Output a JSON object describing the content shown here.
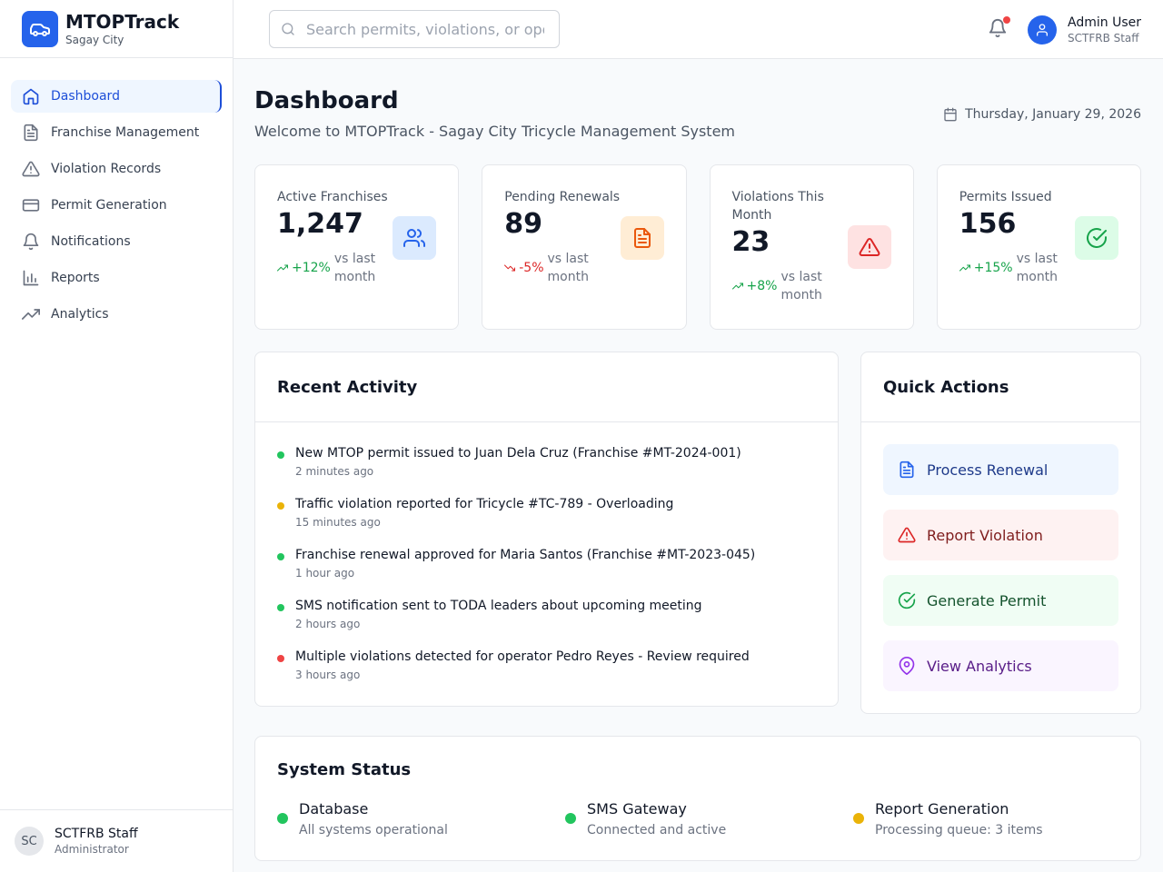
{
  "brand": {
    "title": "MTOPTrack",
    "subtitle": "Sagay City",
    "accent": "#2563eb"
  },
  "sidebar": {
    "items": [
      {
        "label": "Dashboard",
        "icon": "home-icon",
        "active": true
      },
      {
        "label": "Franchise Management",
        "icon": "file-icon"
      },
      {
        "label": "Violation Records",
        "icon": "alert-triangle-icon"
      },
      {
        "label": "Permit Generation",
        "icon": "credit-card-icon"
      },
      {
        "label": "Notifications",
        "icon": "bell-icon"
      },
      {
        "label": "Reports",
        "icon": "bar-chart-icon"
      },
      {
        "label": "Analytics",
        "icon": "trending-up-icon"
      }
    ],
    "footer": {
      "initials": "SC",
      "name": "SCTFRB Staff",
      "role": "Administrator"
    }
  },
  "header": {
    "search_placeholder": "Search permits, violations, or operators...",
    "user": {
      "name": "Admin User",
      "role": "SCTFRB Staff"
    }
  },
  "page": {
    "title": "Dashboard",
    "subtitle": "Welcome to MTOPTrack - Sagay City Tricycle Management System",
    "date": "Thursday, January 29, 2026"
  },
  "stats": [
    {
      "label": "Active Franchises",
      "value": "1,247",
      "change": "+12%",
      "trend": "up",
      "note": "vs last month",
      "icon": "users-icon"
    },
    {
      "label": "Pending Renewals",
      "value": "89",
      "change": "-5%",
      "trend": "down",
      "note": "vs last month",
      "icon": "file-text-icon"
    },
    {
      "label": "Violations This Month",
      "value": "23",
      "change": "+8%",
      "trend": "up",
      "note": "vs last month",
      "icon": "alert-triangle-icon"
    },
    {
      "label": "Permits Issued",
      "value": "156",
      "change": "+15%",
      "trend": "up",
      "note": "vs last month",
      "icon": "check-circle-icon"
    }
  ],
  "activity": {
    "title": "Recent Activity",
    "items": [
      {
        "message": "New MTOP permit issued to Juan Dela Cruz (Franchise #MT-2024-001)",
        "time": "2 minutes ago",
        "color": "#22c55e"
      },
      {
        "message": "Traffic violation reported for Tricycle #TC-789 - Overloading",
        "time": "15 minutes ago",
        "color": "#eab308"
      },
      {
        "message": "Franchise renewal approved for Maria Santos (Franchise #MT-2023-045)",
        "time": "1 hour ago",
        "color": "#22c55e"
      },
      {
        "message": "SMS notification sent to TODA leaders about upcoming meeting",
        "time": "2 hours ago",
        "color": "#22c55e"
      },
      {
        "message": "Multiple violations detected for operator Pedro Reyes - Review required",
        "time": "3 hours ago",
        "color": "#ef4444"
      }
    ]
  },
  "quick_actions": {
    "title": "Quick Actions",
    "items": [
      {
        "label": "Process Renewal",
        "icon": "file-text-icon"
      },
      {
        "label": "Report Violation",
        "icon": "alert-triangle-icon"
      },
      {
        "label": "Generate Permit",
        "icon": "check-circle-icon"
      },
      {
        "label": "View Analytics",
        "icon": "map-pin-icon"
      }
    ]
  },
  "system_status": {
    "title": "System Status",
    "items": [
      {
        "name": "Database",
        "description": "All systems operational",
        "color": "#22c55e"
      },
      {
        "name": "SMS Gateway",
        "description": "Connected and active",
        "color": "#22c55e"
      },
      {
        "name": "Report Generation",
        "description": "Processing queue: 3 items",
        "color": "#eab308"
      }
    ]
  }
}
